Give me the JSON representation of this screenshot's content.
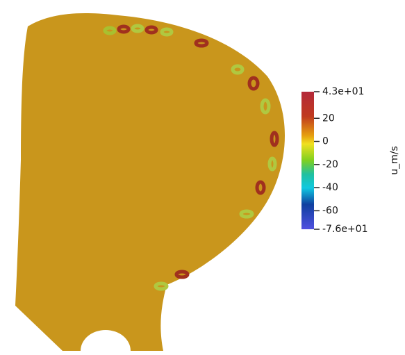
{
  "colorbar": {
    "title": "u_m/s",
    "range": [
      -76,
      43
    ],
    "ticks": [
      {
        "value": 43,
        "label": "4.3e+01"
      },
      20,
      0,
      -20,
      -40,
      -60,
      {
        "value": -76,
        "label": "-7.6e+01"
      }
    ]
  }
}
